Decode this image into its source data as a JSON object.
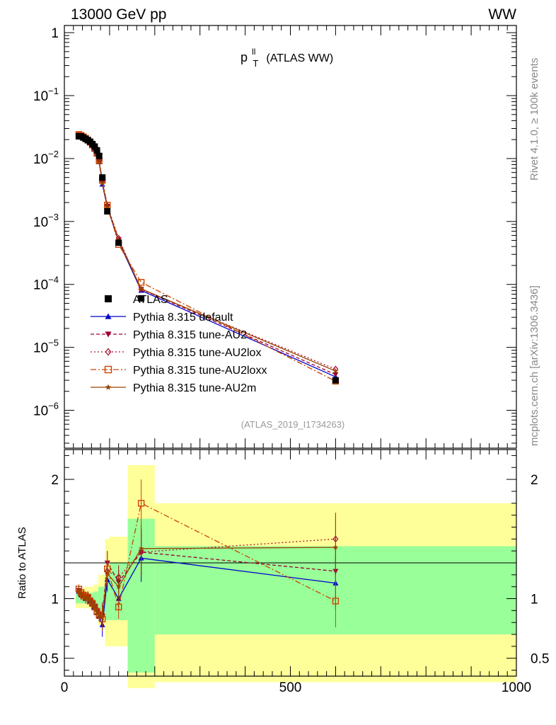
{
  "header": {
    "energy_label": "13000 GeV pp",
    "process_label": "WW",
    "title_main": "p",
    "title_sup": "ll",
    "title_sub": "T",
    "title_rest": "(ATLAS WW)",
    "side_label_top": "Rivet 4.1.0, ≥ 100k events",
    "side_label_bottom": "mcplots.cern.ch [arXiv:1306.3436]",
    "analysis_id": "(ATLAS_2019_I1734263)",
    "ratio_ylabel": "Ratio to ATLAS"
  },
  "colors": {
    "data": "#000000",
    "default": "#0000cc",
    "AU2": "#990033",
    "AU2lox": "#aa1133",
    "AU2loxx": "#cc4400",
    "AU2m": "#994400",
    "band_yellow": "#ffff99",
    "band_green": "#99ff99"
  },
  "chart_data": [
    {
      "type": "scatter",
      "scale": "log",
      "xlim": [
        0,
        1000
      ],
      "ylim": [
        2.5e-07,
        1.3
      ],
      "ytick_labels": [
        "1",
        "10^-1",
        "10^-2",
        "10^-3",
        "10^-4",
        "10^-5",
        "10^-6"
      ],
      "x": [
        32,
        37,
        42,
        47,
        52,
        57,
        62,
        67,
        72,
        77,
        84,
        95,
        120,
        170,
        600
      ],
      "series": [
        {
          "name": "ATLAS",
          "values": [
            0.0225,
            0.0225,
            0.0215,
            0.0205,
            0.0195,
            0.0185,
            0.017,
            0.0155,
            0.0135,
            0.011,
            0.005,
            0.00145,
            0.00046,
            6e-05,
            3e-06
          ]
        },
        {
          "name": "Pythia 8.315 default",
          "values": [
            0.0238,
            0.023,
            0.022,
            0.0208,
            0.0195,
            0.018,
            0.0162,
            0.0142,
            0.0118,
            0.0088,
            0.0039,
            0.00168,
            0.00048,
            8e-05,
            3.4e-06
          ]
        },
        {
          "name": "Pythia 8.315 tune-AU2",
          "values": [
            0.024,
            0.0232,
            0.0221,
            0.0209,
            0.0196,
            0.0181,
            0.0163,
            0.0143,
            0.012,
            0.009,
            0.0042,
            0.00175,
            0.00052,
            8.4e-05,
            3.7e-06
          ]
        },
        {
          "name": "Pythia 8.315 tune-AU2lox",
          "values": [
            0.0239,
            0.0231,
            0.0221,
            0.0209,
            0.0196,
            0.0181,
            0.0163,
            0.0143,
            0.012,
            0.0091,
            0.0044,
            0.00178,
            0.00054,
            8.3e-05,
            4.5e-06
          ]
        },
        {
          "name": "Pythia 8.315 tune-AU2loxx",
          "values": [
            0.0241,
            0.0233,
            0.0222,
            0.021,
            0.0197,
            0.0182,
            0.0164,
            0.0144,
            0.0121,
            0.0092,
            0.0045,
            0.00182,
            0.00043,
            0.000108,
            2.9e-06
          ]
        },
        {
          "name": "Pythia 8.315 tune-AU2m",
          "values": [
            0.0238,
            0.023,
            0.022,
            0.0208,
            0.0195,
            0.018,
            0.0162,
            0.0143,
            0.0119,
            0.0089,
            0.0041,
            0.00172,
            0.0005,
            8.5e-05,
            4.2e-06
          ]
        }
      ]
    },
    {
      "type": "scatter",
      "xlabel": "",
      "ylabel": "Ratio to ATLAS",
      "xlim": [
        0,
        1000
      ],
      "ylim": [
        0.35,
        2.25
      ],
      "x_ticks": [
        0,
        500,
        1000
      ],
      "x_tick_labels": [
        "0",
        "500",
        "1000"
      ],
      "y_ticks": [
        0.5,
        1,
        2
      ],
      "y_tick_labels": [
        "0.5",
        "1",
        "2"
      ],
      "x": [
        32,
        37,
        42,
        47,
        52,
        57,
        62,
        67,
        72,
        77,
        84,
        95,
        120,
        170,
        600
      ],
      "bands": [
        {
          "x0": 25,
          "x1": 35,
          "green": [
            0.96,
            1.04
          ],
          "yellow": [
            0.92,
            1.08
          ]
        },
        {
          "x0": 35,
          "x1": 45,
          "green": [
            0.96,
            1.04
          ],
          "yellow": [
            0.92,
            1.09
          ]
        },
        {
          "x0": 45,
          "x1": 55,
          "green": [
            0.96,
            1.05
          ],
          "yellow": [
            0.92,
            1.1
          ]
        },
        {
          "x0": 55,
          "x1": 65,
          "green": [
            0.95,
            1.05
          ],
          "yellow": [
            0.91,
            1.1
          ]
        },
        {
          "x0": 65,
          "x1": 75,
          "green": [
            0.94,
            1.06
          ],
          "yellow": [
            0.88,
            1.12
          ]
        },
        {
          "x0": 75,
          "x1": 90,
          "green": [
            0.88,
            1.1
          ],
          "yellow": [
            0.78,
            1.2
          ]
        },
        {
          "x0": 90,
          "x1": 100,
          "green": [
            0.82,
            1.25
          ],
          "yellow": [
            0.6,
            1.5
          ]
        },
        {
          "x0": 100,
          "x1": 140,
          "green": [
            0.82,
            1.3
          ],
          "yellow": [
            0.6,
            1.52
          ]
        },
        {
          "x0": 140,
          "x1": 200,
          "green": [
            0.38,
            1.67
          ],
          "yellow": [
            0.25,
            2.12
          ]
        },
        {
          "x0": 200,
          "x1": 1000,
          "green": [
            0.7,
            1.44
          ],
          "yellow": [
            0.3,
            1.8
          ]
        }
      ],
      "series": [
        {
          "name": "Pythia 8.315 default",
          "values": [
            1.06,
            1.03,
            1.02,
            1.0,
            1.02,
            0.98,
            0.96,
            0.93,
            0.88,
            0.85,
            0.78,
            1.16,
            1.0,
            1.34,
            1.13
          ]
        },
        {
          "name": "Pythia 8.315 tune-AU2",
          "values": [
            1.07,
            1.04,
            1.03,
            1.01,
            1.02,
            0.99,
            0.97,
            0.94,
            0.9,
            0.87,
            0.85,
            1.3,
            1.14,
            1.39,
            1.23
          ]
        },
        {
          "name": "Pythia 8.315 tune-AU2lox",
          "values": [
            1.06,
            1.03,
            1.03,
            1.01,
            1.01,
            0.99,
            0.96,
            0.94,
            0.91,
            0.88,
            0.87,
            1.23,
            1.18,
            1.39,
            1.5
          ]
        },
        {
          "name": "Pythia 8.315 tune-AU2loxx",
          "values": [
            1.08,
            1.05,
            1.03,
            1.02,
            1.01,
            0.98,
            0.96,
            0.93,
            0.89,
            0.86,
            0.83,
            1.25,
            0.93,
            1.8,
            0.98
          ]
        },
        {
          "name": "Pythia 8.315 tune-AU2m",
          "values": [
            1.06,
            1.04,
            1.02,
            1.0,
            1.01,
            0.98,
            0.96,
            0.93,
            0.89,
            0.86,
            0.84,
            1.21,
            1.1,
            1.42,
            1.43
          ]
        }
      ]
    }
  ],
  "legend": [
    {
      "key": "data",
      "label": "ATLAS",
      "marker": "square"
    },
    {
      "key": "default",
      "label": "Pythia 8.315 default",
      "marker": "triangle-up",
      "dash": ""
    },
    {
      "key": "AU2",
      "label": "Pythia 8.315 tune-AU2",
      "marker": "triangle-down",
      "dash": "5,3"
    },
    {
      "key": "AU2lox",
      "label": "Pythia 8.315 tune-AU2lox",
      "marker": "diamond",
      "dash": "2,3"
    },
    {
      "key": "AU2loxx",
      "label": "Pythia 8.315 tune-AU2loxx",
      "marker": "square-open",
      "dash": "8,3,2,3"
    },
    {
      "key": "AU2m",
      "label": "Pythia 8.315 tune-AU2m",
      "marker": "star",
      "dash": ""
    }
  ]
}
